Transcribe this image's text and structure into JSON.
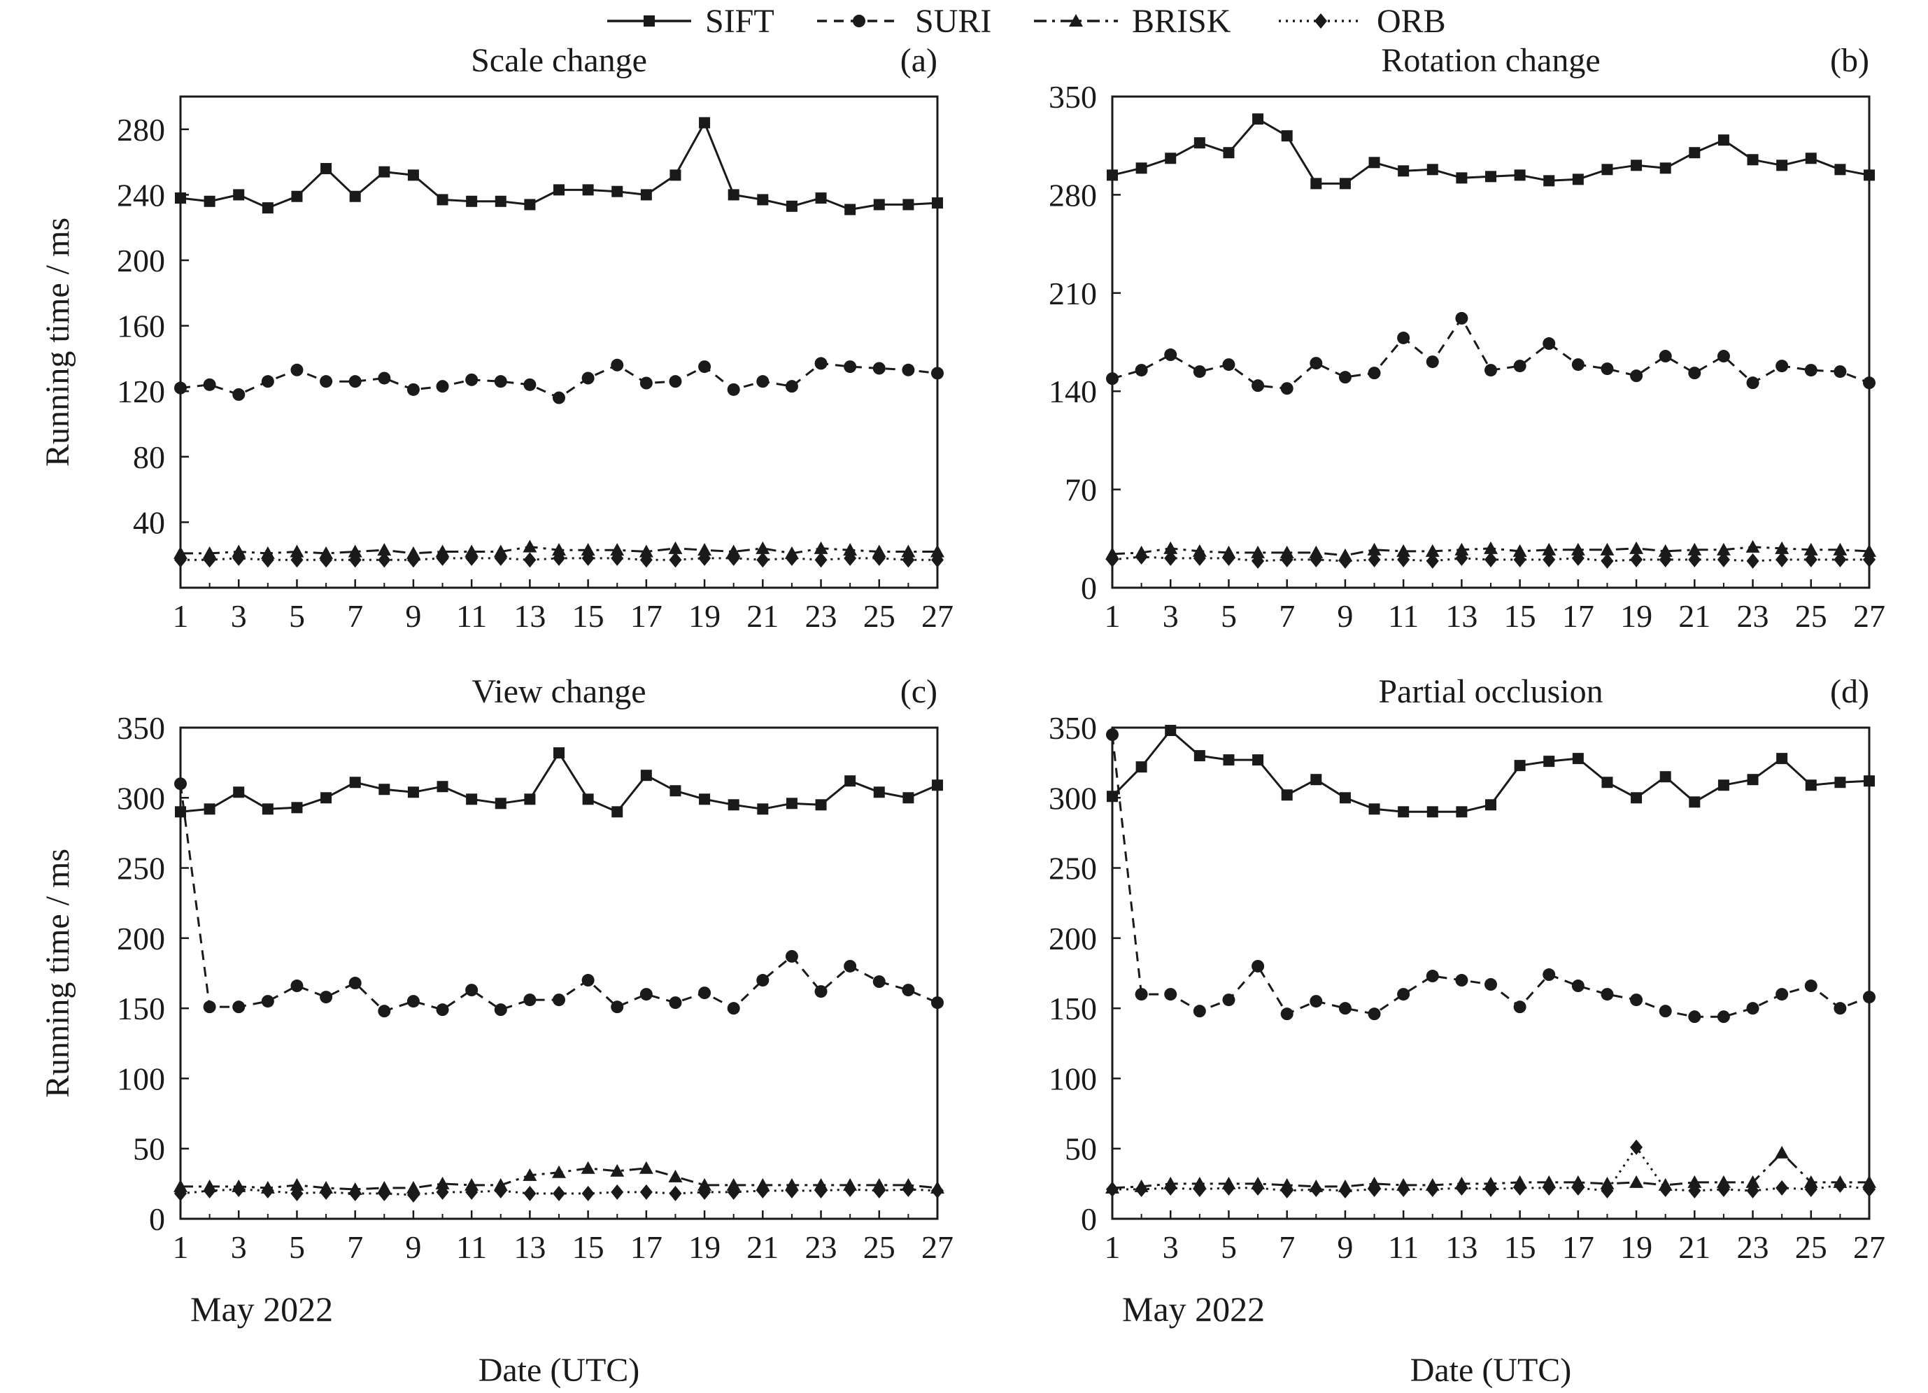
{
  "legend": {
    "position": "top",
    "entries": [
      {
        "name": "SIFT",
        "marker": "square",
        "dash": "solid"
      },
      {
        "name": "SURI",
        "marker": "circle",
        "dash": "dashed"
      },
      {
        "name": "BRISK",
        "marker": "triangle",
        "dash": "dashdot"
      },
      {
        "name": "ORB",
        "marker": "diamond",
        "dash": "dotted"
      }
    ]
  },
  "colors": {
    "ink": "#1a1a1a",
    "background": "#ffffff"
  },
  "chart_data": [
    {
      "type": "line",
      "title": "Scale change",
      "tag": "(a)",
      "xlabel": "",
      "ylabel": "Running time / ms",
      "month_label": "",
      "x": [
        1,
        2,
        3,
        4,
        5,
        6,
        7,
        8,
        9,
        10,
        11,
        12,
        13,
        14,
        15,
        16,
        17,
        18,
        19,
        20,
        21,
        22,
        23,
        24,
        25,
        26,
        27
      ],
      "x_ticks": [
        "1",
        "3",
        "5",
        "7",
        "9",
        "11",
        "13",
        "15",
        "17",
        "19",
        "21",
        "23",
        "25",
        "27"
      ],
      "ylim": [
        0,
        300
      ],
      "y_ticks": [
        "40",
        "80",
        "120",
        "160",
        "200",
        "240",
        "280"
      ],
      "series": [
        {
          "name": "SIFT",
          "values": [
            238,
            236,
            240,
            232,
            239,
            256,
            239,
            254,
            252,
            237,
            236,
            236,
            234,
            243,
            243,
            242,
            240,
            252,
            284,
            240,
            237,
            233,
            238,
            231,
            234,
            234,
            235
          ]
        },
        {
          "name": "SURI",
          "values": [
            122,
            124,
            118,
            126,
            133,
            126,
            126,
            128,
            121,
            123,
            127,
            126,
            124,
            116,
            128,
            136,
            125,
            126,
            135,
            121,
            126,
            123,
            137,
            135,
            134,
            133,
            131
          ]
        },
        {
          "name": "BRISK",
          "values": [
            21,
            21,
            22,
            21,
            22,
            21,
            22,
            23,
            21,
            22,
            22,
            22,
            25,
            23,
            23,
            23,
            22,
            24,
            23,
            22,
            24,
            21,
            24,
            23,
            22,
            22,
            22
          ]
        },
        {
          "name": "ORB",
          "values": [
            17,
            17,
            18,
            17,
            17,
            17,
            17,
            17,
            17,
            18,
            18,
            18,
            17,
            18,
            18,
            18,
            17,
            17,
            18,
            18,
            17,
            18,
            17,
            18,
            18,
            17,
            17
          ]
        }
      ]
    },
    {
      "type": "line",
      "title": "Rotation change",
      "tag": "(b)",
      "xlabel": "",
      "ylabel": "",
      "month_label": "",
      "x": [
        1,
        2,
        3,
        4,
        5,
        6,
        7,
        8,
        9,
        10,
        11,
        12,
        13,
        14,
        15,
        16,
        17,
        18,
        19,
        20,
        21,
        22,
        23,
        24,
        25,
        26,
        27
      ],
      "x_ticks": [
        "1",
        "3",
        "5",
        "7",
        "9",
        "11",
        "13",
        "15",
        "17",
        "19",
        "21",
        "23",
        "25",
        "27"
      ],
      "ylim": [
        0,
        350
      ],
      "y_ticks": [
        "0",
        "70",
        "140",
        "210",
        "280",
        "350"
      ],
      "series": [
        {
          "name": "SIFT",
          "values": [
            294,
            299,
            306,
            317,
            310,
            334,
            322,
            288,
            288,
            303,
            297,
            298,
            292,
            293,
            294,
            290,
            291,
            298,
            301,
            299,
            310,
            319,
            305,
            301,
            306,
            298,
            294
          ]
        },
        {
          "name": "SURI",
          "values": [
            149,
            155,
            166,
            154,
            159,
            144,
            142,
            160,
            150,
            153,
            178,
            161,
            192,
            155,
            158,
            174,
            159,
            156,
            151,
            165,
            153,
            165,
            146,
            158,
            155,
            154,
            146
          ]
        },
        {
          "name": "BRISK",
          "values": [
            24,
            25,
            28,
            26,
            25,
            25,
            25,
            25,
            23,
            27,
            26,
            26,
            27,
            28,
            26,
            27,
            27,
            27,
            28,
            26,
            27,
            27,
            29,
            28,
            27,
            27,
            26
          ]
        },
        {
          "name": "ORB",
          "values": [
            20,
            22,
            21,
            21,
            21,
            19,
            20,
            20,
            19,
            20,
            20,
            19,
            21,
            20,
            20,
            20,
            21,
            19,
            20,
            20,
            20,
            20,
            19,
            20,
            20,
            20,
            20
          ]
        }
      ]
    },
    {
      "type": "line",
      "title": "View change",
      "tag": "(c)",
      "xlabel": "Date (UTC)",
      "ylabel": "Running time / ms",
      "month_label": "May 2022",
      "x": [
        1,
        2,
        3,
        4,
        5,
        6,
        7,
        8,
        9,
        10,
        11,
        12,
        13,
        14,
        15,
        16,
        17,
        18,
        19,
        20,
        21,
        22,
        23,
        24,
        25,
        26,
        27
      ],
      "x_ticks": [
        "1",
        "3",
        "5",
        "7",
        "9",
        "11",
        "13",
        "15",
        "17",
        "19",
        "21",
        "23",
        "25",
        "27"
      ],
      "ylim": [
        0,
        350
      ],
      "y_ticks": [
        "0",
        "50",
        "100",
        "150",
        "200",
        "250",
        "300",
        "350"
      ],
      "series": [
        {
          "name": "SIFT",
          "values": [
            290,
            292,
            304,
            292,
            293,
            300,
            311,
            306,
            304,
            308,
            299,
            296,
            299,
            332,
            299,
            290,
            316,
            305,
            299,
            295,
            292,
            296,
            295,
            312,
            304,
            300,
            309
          ]
        },
        {
          "name": "SURI",
          "values": [
            310,
            151,
            151,
            155,
            166,
            158,
            168,
            148,
            155,
            149,
            163,
            149,
            156,
            156,
            170,
            151,
            160,
            154,
            161,
            150,
            170,
            187,
            162,
            180,
            169,
            163,
            154
          ]
        },
        {
          "name": "BRISK",
          "values": [
            23,
            23,
            23,
            22,
            24,
            22,
            21,
            22,
            22,
            25,
            24,
            24,
            31,
            33,
            36,
            34,
            36,
            30,
            24,
            24,
            24,
            24,
            24,
            24,
            24,
            24,
            22
          ]
        },
        {
          "name": "ORB",
          "values": [
            18,
            20,
            21,
            20,
            18,
            19,
            18,
            18,
            17,
            19,
            19,
            20,
            18,
            18,
            18,
            19,
            19,
            18,
            19,
            19,
            20,
            20,
            20,
            21,
            20,
            21,
            20
          ]
        }
      ]
    },
    {
      "type": "line",
      "title": "Partial occlusion",
      "tag": "(d)",
      "xlabel": "Date (UTC)",
      "ylabel": "",
      "month_label": "May 2022",
      "x": [
        1,
        2,
        3,
        4,
        5,
        6,
        7,
        8,
        9,
        10,
        11,
        12,
        13,
        14,
        15,
        16,
        17,
        18,
        19,
        20,
        21,
        22,
        23,
        24,
        25,
        26,
        27
      ],
      "x_ticks": [
        "1",
        "3",
        "5",
        "7",
        "9",
        "11",
        "13",
        "15",
        "17",
        "19",
        "21",
        "23",
        "25",
        "27"
      ],
      "ylim": [
        0,
        350
      ],
      "y_ticks": [
        "0",
        "50",
        "100",
        "150",
        "200",
        "250",
        "300",
        "350"
      ],
      "series": [
        {
          "name": "SIFT",
          "values": [
            301,
            322,
            348,
            330,
            327,
            327,
            302,
            313,
            300,
            292,
            290,
            290,
            290,
            295,
            323,
            326,
            328,
            311,
            300,
            315,
            297,
            309,
            313,
            328,
            309,
            311,
            312
          ]
        },
        {
          "name": "SURI",
          "values": [
            345,
            160,
            160,
            148,
            156,
            180,
            146,
            155,
            150,
            146,
            160,
            173,
            170,
            167,
            151,
            174,
            166,
            160,
            156,
            148,
            144,
            144,
            150,
            160,
            166,
            150,
            158
          ]
        },
        {
          "name": "BRISK",
          "values": [
            22,
            23,
            25,
            25,
            25,
            25,
            24,
            23,
            23,
            25,
            24,
            24,
            25,
            25,
            26,
            26,
            26,
            25,
            26,
            24,
            26,
            26,
            26,
            47,
            26,
            26,
            26
          ]
        },
        {
          "name": "ORB",
          "values": [
            21,
            21,
            22,
            21,
            22,
            22,
            20,
            21,
            20,
            21,
            21,
            21,
            22,
            21,
            22,
            22,
            22,
            20,
            51,
            21,
            20,
            21,
            20,
            22,
            21,
            24,
            21
          ]
        }
      ]
    }
  ]
}
